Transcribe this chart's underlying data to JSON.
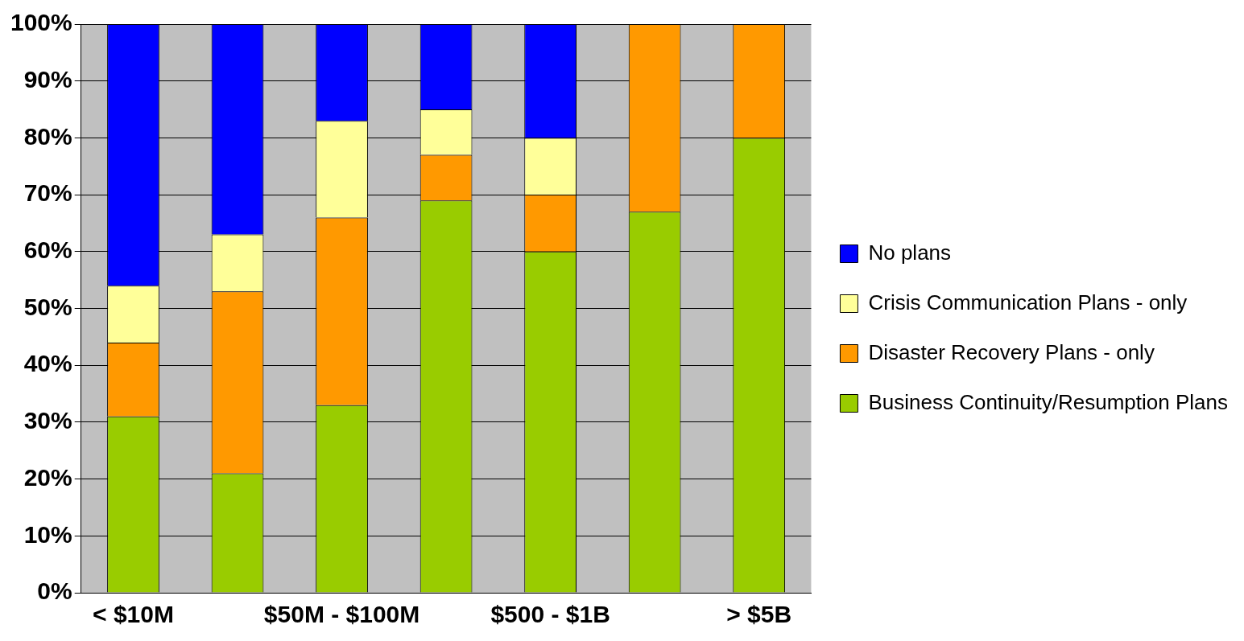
{
  "chart_data": {
    "type": "bar",
    "stacked": true,
    "categories": [
      "< $10M",
      null,
      "$50M - $100M",
      null,
      "$500 - $1B",
      null,
      "> $5B"
    ],
    "series": [
      {
        "name": "Business Continuity/Resumption Plans",
        "color": "#99cc00",
        "values": [
          31,
          21,
          33,
          69,
          60,
          67,
          80
        ]
      },
      {
        "name": "Disaster Recovery Plans - only",
        "color": "#ff9900",
        "values": [
          13,
          32,
          33,
          8,
          10,
          33,
          20
        ]
      },
      {
        "name": "Crisis Communication Plans - only",
        "color": "#ffff99",
        "values": [
          10,
          10,
          17,
          8,
          10,
          0,
          0
        ]
      },
      {
        "name": "No plans",
        "color": "#0000ff",
        "values": [
          46,
          37,
          17,
          15,
          20,
          0,
          0
        ]
      }
    ],
    "ylim": [
      0,
      100
    ],
    "yticks": [
      {
        "value": 0,
        "label": "0%"
      },
      {
        "value": 10,
        "label": "10%"
      },
      {
        "value": 20,
        "label": "20%"
      },
      {
        "value": 30,
        "label": "30%"
      },
      {
        "value": 40,
        "label": "40%"
      },
      {
        "value": 50,
        "label": "50%"
      },
      {
        "value": 60,
        "label": "60%"
      },
      {
        "value": 70,
        "label": "70%"
      },
      {
        "value": 80,
        "label": "80%"
      },
      {
        "value": 90,
        "label": "90%"
      },
      {
        "value": 100,
        "label": "100%"
      }
    ],
    "grid": "y",
    "legend": "right"
  }
}
